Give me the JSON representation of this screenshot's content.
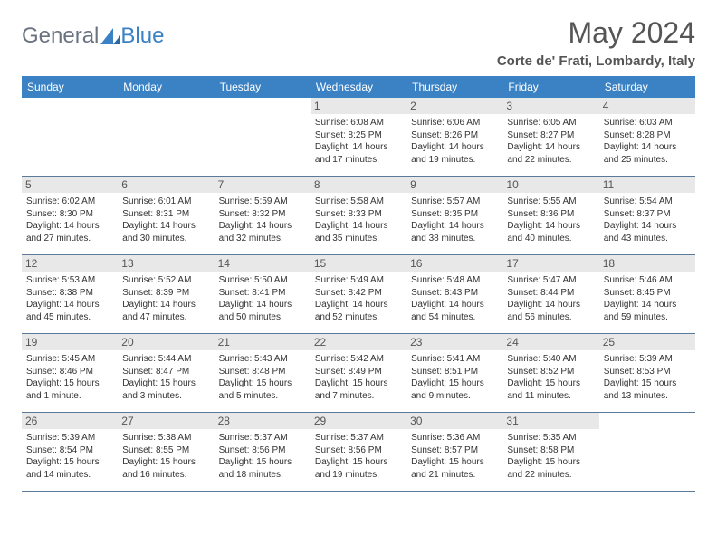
{
  "brand": {
    "general": "General",
    "blue": "Blue",
    "logo_fill": "#3b82c4"
  },
  "title": "May 2024",
  "location": "Corte de' Frati, Lombardy, Italy",
  "colors": {
    "header_bg": "#3b82c4",
    "header_text": "#ffffff",
    "daynum_bg": "#e8e8e8",
    "border": "#5a7a9a",
    "text": "#333333",
    "title_text": "#555555"
  },
  "day_headers": [
    "Sunday",
    "Monday",
    "Tuesday",
    "Wednesday",
    "Thursday",
    "Friday",
    "Saturday"
  ],
  "weeks": [
    [
      {
        "n": "",
        "sr": "",
        "ss": "",
        "dl": ""
      },
      {
        "n": "",
        "sr": "",
        "ss": "",
        "dl": ""
      },
      {
        "n": "",
        "sr": "",
        "ss": "",
        "dl": ""
      },
      {
        "n": "1",
        "sr": "Sunrise: 6:08 AM",
        "ss": "Sunset: 8:25 PM",
        "dl": "Daylight: 14 hours and 17 minutes."
      },
      {
        "n": "2",
        "sr": "Sunrise: 6:06 AM",
        "ss": "Sunset: 8:26 PM",
        "dl": "Daylight: 14 hours and 19 minutes."
      },
      {
        "n": "3",
        "sr": "Sunrise: 6:05 AM",
        "ss": "Sunset: 8:27 PM",
        "dl": "Daylight: 14 hours and 22 minutes."
      },
      {
        "n": "4",
        "sr": "Sunrise: 6:03 AM",
        "ss": "Sunset: 8:28 PM",
        "dl": "Daylight: 14 hours and 25 minutes."
      }
    ],
    [
      {
        "n": "5",
        "sr": "Sunrise: 6:02 AM",
        "ss": "Sunset: 8:30 PM",
        "dl": "Daylight: 14 hours and 27 minutes."
      },
      {
        "n": "6",
        "sr": "Sunrise: 6:01 AM",
        "ss": "Sunset: 8:31 PM",
        "dl": "Daylight: 14 hours and 30 minutes."
      },
      {
        "n": "7",
        "sr": "Sunrise: 5:59 AM",
        "ss": "Sunset: 8:32 PM",
        "dl": "Daylight: 14 hours and 32 minutes."
      },
      {
        "n": "8",
        "sr": "Sunrise: 5:58 AM",
        "ss": "Sunset: 8:33 PM",
        "dl": "Daylight: 14 hours and 35 minutes."
      },
      {
        "n": "9",
        "sr": "Sunrise: 5:57 AM",
        "ss": "Sunset: 8:35 PM",
        "dl": "Daylight: 14 hours and 38 minutes."
      },
      {
        "n": "10",
        "sr": "Sunrise: 5:55 AM",
        "ss": "Sunset: 8:36 PM",
        "dl": "Daylight: 14 hours and 40 minutes."
      },
      {
        "n": "11",
        "sr": "Sunrise: 5:54 AM",
        "ss": "Sunset: 8:37 PM",
        "dl": "Daylight: 14 hours and 43 minutes."
      }
    ],
    [
      {
        "n": "12",
        "sr": "Sunrise: 5:53 AM",
        "ss": "Sunset: 8:38 PM",
        "dl": "Daylight: 14 hours and 45 minutes."
      },
      {
        "n": "13",
        "sr": "Sunrise: 5:52 AM",
        "ss": "Sunset: 8:39 PM",
        "dl": "Daylight: 14 hours and 47 minutes."
      },
      {
        "n": "14",
        "sr": "Sunrise: 5:50 AM",
        "ss": "Sunset: 8:41 PM",
        "dl": "Daylight: 14 hours and 50 minutes."
      },
      {
        "n": "15",
        "sr": "Sunrise: 5:49 AM",
        "ss": "Sunset: 8:42 PM",
        "dl": "Daylight: 14 hours and 52 minutes."
      },
      {
        "n": "16",
        "sr": "Sunrise: 5:48 AM",
        "ss": "Sunset: 8:43 PM",
        "dl": "Daylight: 14 hours and 54 minutes."
      },
      {
        "n": "17",
        "sr": "Sunrise: 5:47 AM",
        "ss": "Sunset: 8:44 PM",
        "dl": "Daylight: 14 hours and 56 minutes."
      },
      {
        "n": "18",
        "sr": "Sunrise: 5:46 AM",
        "ss": "Sunset: 8:45 PM",
        "dl": "Daylight: 14 hours and 59 minutes."
      }
    ],
    [
      {
        "n": "19",
        "sr": "Sunrise: 5:45 AM",
        "ss": "Sunset: 8:46 PM",
        "dl": "Daylight: 15 hours and 1 minute."
      },
      {
        "n": "20",
        "sr": "Sunrise: 5:44 AM",
        "ss": "Sunset: 8:47 PM",
        "dl": "Daylight: 15 hours and 3 minutes."
      },
      {
        "n": "21",
        "sr": "Sunrise: 5:43 AM",
        "ss": "Sunset: 8:48 PM",
        "dl": "Daylight: 15 hours and 5 minutes."
      },
      {
        "n": "22",
        "sr": "Sunrise: 5:42 AM",
        "ss": "Sunset: 8:49 PM",
        "dl": "Daylight: 15 hours and 7 minutes."
      },
      {
        "n": "23",
        "sr": "Sunrise: 5:41 AM",
        "ss": "Sunset: 8:51 PM",
        "dl": "Daylight: 15 hours and 9 minutes."
      },
      {
        "n": "24",
        "sr": "Sunrise: 5:40 AM",
        "ss": "Sunset: 8:52 PM",
        "dl": "Daylight: 15 hours and 11 minutes."
      },
      {
        "n": "25",
        "sr": "Sunrise: 5:39 AM",
        "ss": "Sunset: 8:53 PM",
        "dl": "Daylight: 15 hours and 13 minutes."
      }
    ],
    [
      {
        "n": "26",
        "sr": "Sunrise: 5:39 AM",
        "ss": "Sunset: 8:54 PM",
        "dl": "Daylight: 15 hours and 14 minutes."
      },
      {
        "n": "27",
        "sr": "Sunrise: 5:38 AM",
        "ss": "Sunset: 8:55 PM",
        "dl": "Daylight: 15 hours and 16 minutes."
      },
      {
        "n": "28",
        "sr": "Sunrise: 5:37 AM",
        "ss": "Sunset: 8:56 PM",
        "dl": "Daylight: 15 hours and 18 minutes."
      },
      {
        "n": "29",
        "sr": "Sunrise: 5:37 AM",
        "ss": "Sunset: 8:56 PM",
        "dl": "Daylight: 15 hours and 19 minutes."
      },
      {
        "n": "30",
        "sr": "Sunrise: 5:36 AM",
        "ss": "Sunset: 8:57 PM",
        "dl": "Daylight: 15 hours and 21 minutes."
      },
      {
        "n": "31",
        "sr": "Sunrise: 5:35 AM",
        "ss": "Sunset: 8:58 PM",
        "dl": "Daylight: 15 hours and 22 minutes."
      },
      {
        "n": "",
        "sr": "",
        "ss": "",
        "dl": ""
      }
    ]
  ]
}
